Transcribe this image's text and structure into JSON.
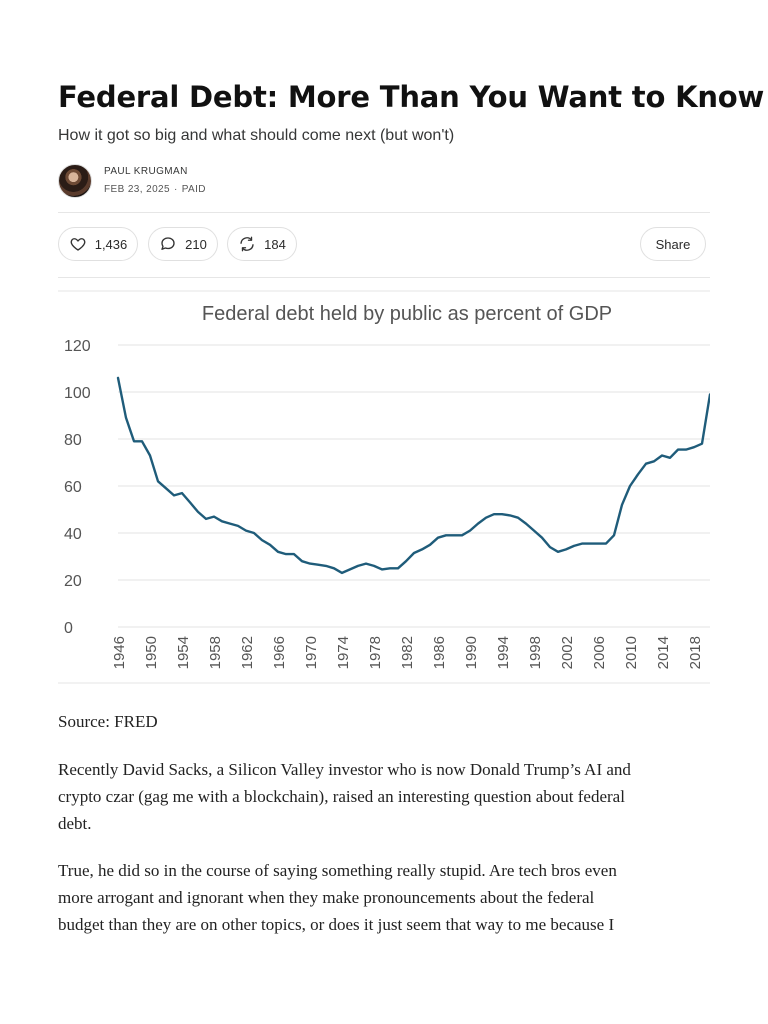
{
  "post": {
    "title": "Federal Debt: More Than You Want to Know",
    "subtitle": "How it got so big and what should come next (but won't)",
    "author": "PAUL KRUGMAN",
    "date": "FEB 23, 2025",
    "separator": "·",
    "access": "PAID"
  },
  "actions": {
    "likes": "1,436",
    "comments": "210",
    "restacks": "184",
    "share_label": "Share",
    "icons": {
      "like": "heart-icon",
      "comment": "comment-bubble-icon",
      "restack": "restack-arrows-icon"
    }
  },
  "chart_data": {
    "type": "line",
    "title": "Federal debt held by public as percent of GDP",
    "xlabel": "",
    "ylabel": "",
    "ylim": [
      0,
      120
    ],
    "yticks": [
      0,
      20,
      40,
      60,
      80,
      100,
      120
    ],
    "xticks": [
      1946,
      1950,
      1954,
      1958,
      1962,
      1966,
      1970,
      1974,
      1978,
      1982,
      1986,
      1990,
      1994,
      1998,
      2002,
      2006,
      2010,
      2014,
      2018
    ],
    "grid": true,
    "line_color": "#1f5c7a",
    "series": [
      {
        "x": [
          1946,
          1947,
          1948,
          1949,
          1950,
          1951,
          1952,
          1953,
          1954,
          1955,
          1956,
          1957,
          1958,
          1959,
          1960,
          1961,
          1962,
          1963,
          1964,
          1965,
          1966,
          1967,
          1968,
          1969,
          1970,
          1971,
          1972,
          1973,
          1974,
          1975,
          1976,
          1977,
          1978,
          1979,
          1980,
          1981,
          1982,
          1983,
          1984,
          1985,
          1986,
          1987,
          1988,
          1989,
          1990,
          1991,
          1992,
          1993,
          1994,
          1995,
          1996,
          1997,
          1998,
          1999,
          2000,
          2001,
          2002,
          2003,
          2004,
          2005,
          2006,
          2007,
          2008,
          2009,
          2010,
          2011,
          2012,
          2013,
          2014,
          2015,
          2016,
          2017,
          2018,
          2019,
          2020
        ],
        "values": [
          106,
          89,
          79,
          79,
          73,
          62,
          59,
          56,
          57,
          53,
          49,
          46,
          47,
          45,
          44,
          43,
          41,
          40,
          37,
          35,
          32,
          31,
          31,
          28,
          27,
          26.5,
          26,
          25,
          23,
          24.5,
          26,
          27,
          26,
          24.5,
          25,
          25,
          28,
          31.5,
          33,
          35,
          38,
          39,
          39,
          39,
          41,
          44,
          46.5,
          48,
          48,
          47.5,
          46.5,
          44,
          41,
          38,
          34,
          32,
          33,
          34.5,
          35.5,
          35.5,
          35.5,
          35.5,
          39,
          52,
          60,
          65,
          69.5,
          70.5,
          73,
          72,
          75.5,
          75.5,
          76.5,
          78,
          99
        ]
      }
    ]
  },
  "source": {
    "text": "Source: FRED"
  },
  "body": {
    "p1": [
      "Recently David Sacks, a Silicon Valley investor who is now Donald Trump’s AI and",
      "crypto czar (gag me with a blockchain), raised an interesting question about federal",
      "debt."
    ],
    "p2": [
      "True, he did so in the course of saying something really stupid. Are tech bros even",
      "more arrogant and ignorant when they make pronouncements about the federal",
      "budget than they are on other topics, or does it just seem that way to me because I"
    ]
  }
}
